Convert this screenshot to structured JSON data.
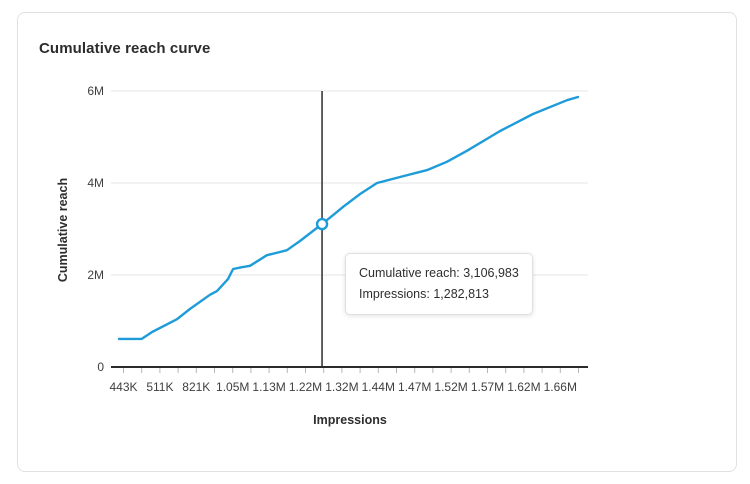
{
  "card": {
    "title": "Cumulative reach curve"
  },
  "tooltip": {
    "reach_line": "Cumulative reach: 3,106,983",
    "impressions_line": "Impressions: 1,282,813"
  },
  "chart_data": {
    "type": "line",
    "title": "Cumulative reach curve",
    "xlabel": "Impressions",
    "ylabel": "Cumulative reach",
    "x_tick_labels": [
      "443K",
      "511K",
      "821K",
      "1.05M",
      "1.13M",
      "1.22M",
      "1.32M",
      "1.44M",
      "1.47M",
      "1.52M",
      "1.57M",
      "1.62M",
      "1.66M"
    ],
    "y_ticks": [
      {
        "value": 0,
        "label": "0"
      },
      {
        "value": 2,
        "label": "2M"
      },
      {
        "value": 4,
        "label": "4M"
      },
      {
        "value": 6,
        "label": "6M"
      }
    ],
    "ylim_millions": [
      0,
      6
    ],
    "grid": "horizontal",
    "legend": "none",
    "series": [
      {
        "name": "Cumulative reach",
        "values_millions_at_labeled_ticks": [
          0.61,
          0.89,
          1.37,
          2.15,
          2.43,
          2.82,
          3.46,
          4.0,
          4.2,
          4.5,
          5.04,
          5.39,
          5.76
        ],
        "curve": [
          [
            -0.25,
            0.61
          ],
          [
            1.0,
            0.61
          ],
          [
            1.57,
            0.76
          ],
          [
            2.94,
            1.04
          ],
          [
            3.65,
            1.26
          ],
          [
            4.75,
            1.57
          ],
          [
            5.14,
            1.65
          ],
          [
            5.74,
            1.91
          ],
          [
            6.02,
            2.13
          ],
          [
            6.51,
            2.17
          ],
          [
            6.95,
            2.2
          ],
          [
            7.88,
            2.43
          ],
          [
            8.6,
            2.5
          ],
          [
            8.98,
            2.54
          ],
          [
            9.7,
            2.74
          ],
          [
            10.91,
            3.11
          ],
          [
            11.51,
            3.3
          ],
          [
            12.06,
            3.48
          ],
          [
            13.0,
            3.76
          ],
          [
            13.93,
            4.0
          ],
          [
            15.19,
            4.13
          ],
          [
            16.68,
            4.28
          ],
          [
            17.77,
            4.46
          ],
          [
            18.87,
            4.7
          ],
          [
            20.69,
            5.13
          ],
          [
            22.5,
            5.5
          ],
          [
            24.37,
            5.8
          ],
          [
            24.97,
            5.87
          ]
        ]
      }
    ],
    "highlight": {
      "cumulative_reach": 3106983,
      "impressions": 1282813,
      "tick_pos": 10.91,
      "reach_millions": 3.107
    }
  },
  "colors": {
    "line": "#1E9CD9",
    "marker_fill": "#ffffff",
    "grid": "#e9e9e9",
    "axis": "#2b2b2b",
    "tick": "#b6b6b6",
    "label_text": "#3f3f3f",
    "crosshair": "#4f4f4f",
    "card_border": "#e1e1e1"
  }
}
